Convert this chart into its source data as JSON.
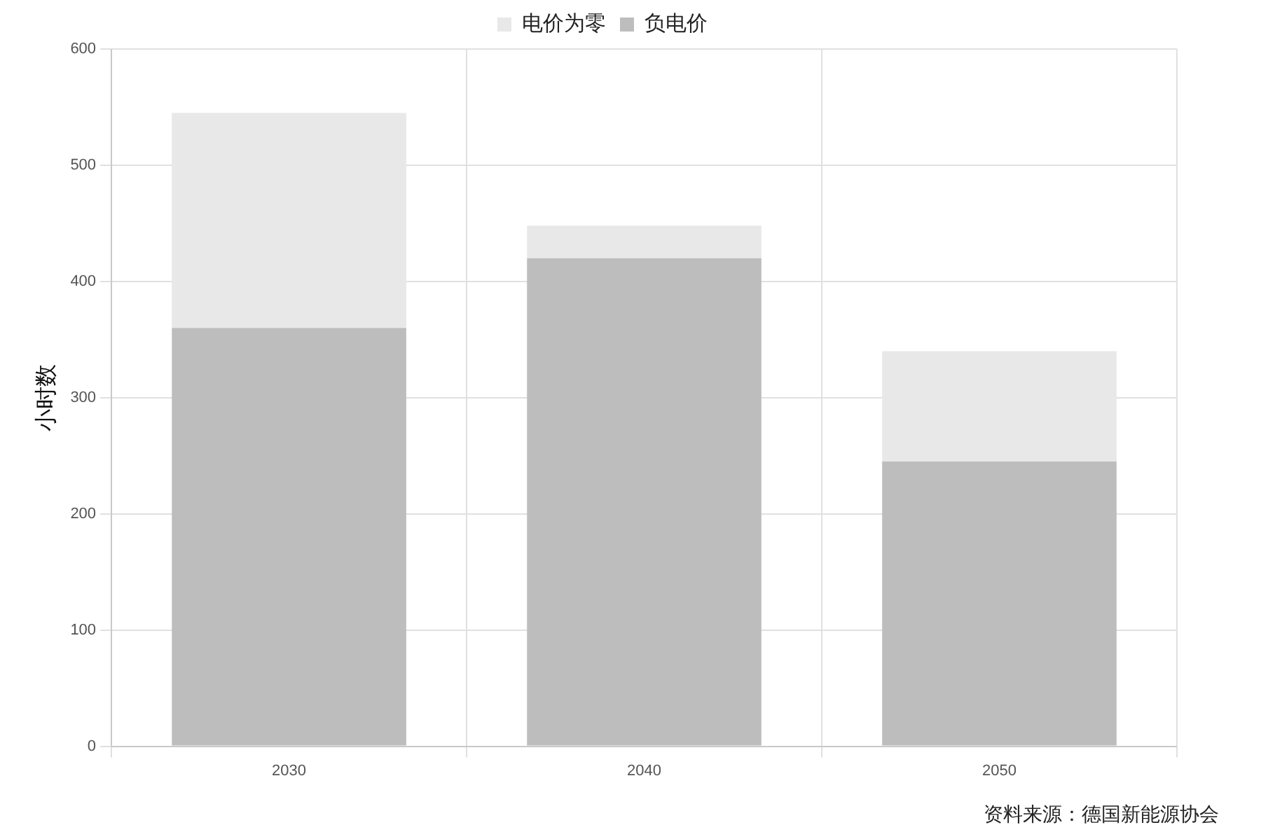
{
  "chart_data": {
    "type": "bar",
    "ylabel": "小时数",
    "categories": [
      "2030",
      "2040",
      "2050"
    ],
    "series": [
      {
        "name": "负电价",
        "color": "#bdbdbd",
        "values": [
          360,
          420,
          245
        ]
      },
      {
        "name": "电价为零",
        "color": "#e8e8e8",
        "values": [
          185,
          28,
          95
        ]
      }
    ],
    "stacked": true,
    "ylim": [
      0,
      600
    ],
    "yticks": [
      0,
      100,
      200,
      300,
      400,
      500,
      600
    ],
    "grid": true,
    "legend": "top",
    "annotations": [
      "资料来源：德国新能源协会"
    ]
  }
}
